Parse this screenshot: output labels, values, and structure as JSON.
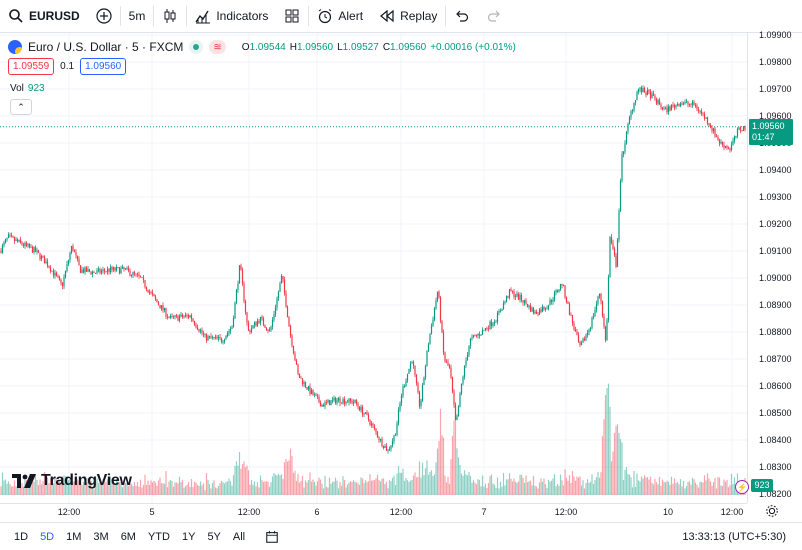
{
  "toolbar": {
    "symbol": "EURUSD",
    "interval": "5m",
    "indicators_label": "Indicators",
    "alert_label": "Alert",
    "replay_label": "Replay"
  },
  "legend": {
    "title": "Euro / U.S. Dollar · 5 · FXCM",
    "o_label": "O",
    "o": "1.09544",
    "h_label": "H",
    "h": "1.09560",
    "l_label": "L",
    "l": "1.09527",
    "c_label": "C",
    "c": "1.09560",
    "change": "+0.00016 (+0.01%)",
    "bid": "1.09559",
    "spread": "0.1",
    "ask": "1.09560",
    "vol_label": "Vol",
    "vol_value": "923"
  },
  "price_scale": {
    "labels": [
      "1.09900",
      "1.09800",
      "1.09700",
      "1.09600",
      "1.09500",
      "1.09400",
      "1.09300",
      "1.09200",
      "1.09100",
      "1.09000",
      "1.08900",
      "1.08800",
      "1.08700",
      "1.08600",
      "1.08500",
      "1.08400",
      "1.08300",
      "1.08200"
    ],
    "last_price": "1.09560",
    "countdown": "01:47",
    "volume_tag": "923"
  },
  "time_scale": {
    "labels": [
      "12:00",
      "5",
      "12:00",
      "6",
      "12:00",
      "7",
      "12:00",
      "10",
      "12:00"
    ]
  },
  "logo_text": "TradingView",
  "bottom": {
    "ranges": [
      "1D",
      "5D",
      "1M",
      "3M",
      "6M",
      "YTD",
      "1Y",
      "5Y",
      "All"
    ],
    "active_range": "5D",
    "clock": "13:33:13 (UTC+5:30)"
  },
  "colors": {
    "up": "#089981",
    "down": "#f23645",
    "accent": "#2962ff"
  },
  "chart_data": {
    "type": "candlestick",
    "symbol": "EURUSD",
    "interval": "5",
    "ylim": [
      1.0815,
      1.0993
    ],
    "close_path": [
      [
        0,
        1.091
      ],
      [
        8,
        1.0915
      ],
      [
        20,
        1.0913
      ],
      [
        35,
        1.091
      ],
      [
        48,
        1.0905
      ],
      [
        62,
        1.0897
      ],
      [
        72,
        1.0912
      ],
      [
        80,
        1.0903
      ],
      [
        95,
        1.0902
      ],
      [
        110,
        1.0903
      ],
      [
        125,
        1.0903
      ],
      [
        140,
        1.09
      ],
      [
        155,
        1.0892
      ],
      [
        170,
        1.0885
      ],
      [
        190,
        1.0886
      ],
      [
        205,
        1.0878
      ],
      [
        222,
        1.0877
      ],
      [
        232,
        1.0882
      ],
      [
        240,
        1.0905
      ],
      [
        248,
        1.088
      ],
      [
        260,
        1.0885
      ],
      [
        270,
        1.088
      ],
      [
        282,
        1.0901
      ],
      [
        290,
        1.088
      ],
      [
        298,
        1.0864
      ],
      [
        310,
        1.0858
      ],
      [
        322,
        1.0853
      ],
      [
        338,
        1.0855
      ],
      [
        355,
        1.0854
      ],
      [
        368,
        1.0848
      ],
      [
        380,
        1.084
      ],
      [
        388,
        1.0836
      ],
      [
        395,
        1.0842
      ],
      [
        402,
        1.0858
      ],
      [
        412,
        1.087
      ],
      [
        420,
        1.0852
      ],
      [
        428,
        1.0875
      ],
      [
        438,
        1.0896
      ],
      [
        444,
        1.087
      ],
      [
        450,
        1.0866
      ],
      [
        456,
        1.0845
      ],
      [
        462,
        1.0862
      ],
      [
        470,
        1.0877
      ],
      [
        482,
        1.088
      ],
      [
        496,
        1.0885
      ],
      [
        510,
        1.0895
      ],
      [
        522,
        1.0892
      ],
      [
        535,
        1.0887
      ],
      [
        548,
        1.089
      ],
      [
        562,
        1.0898
      ],
      [
        572,
        1.0884
      ],
      [
        580,
        1.0874
      ],
      [
        590,
        1.0882
      ],
      [
        600,
        1.0895
      ],
      [
        606,
        1.0875
      ],
      [
        610,
        1.0915
      ],
      [
        616,
        1.0905
      ],
      [
        622,
        1.0945
      ],
      [
        630,
        1.096
      ],
      [
        638,
        1.097
      ],
      [
        650,
        1.0968
      ],
      [
        665,
        1.0962
      ],
      [
        680,
        1.0965
      ],
      [
        695,
        1.0964
      ],
      [
        708,
        1.0958
      ],
      [
        720,
        1.095
      ],
      [
        730,
        1.0948
      ],
      [
        739,
        1.0955
      ],
      [
        746,
        1.0956
      ]
    ],
    "volume_markers": [
      [
        240,
        0.12
      ],
      [
        290,
        0.2
      ],
      [
        440,
        0.45
      ],
      [
        455,
        0.55
      ],
      [
        606,
        0.75
      ],
      [
        615,
        0.45
      ]
    ]
  }
}
